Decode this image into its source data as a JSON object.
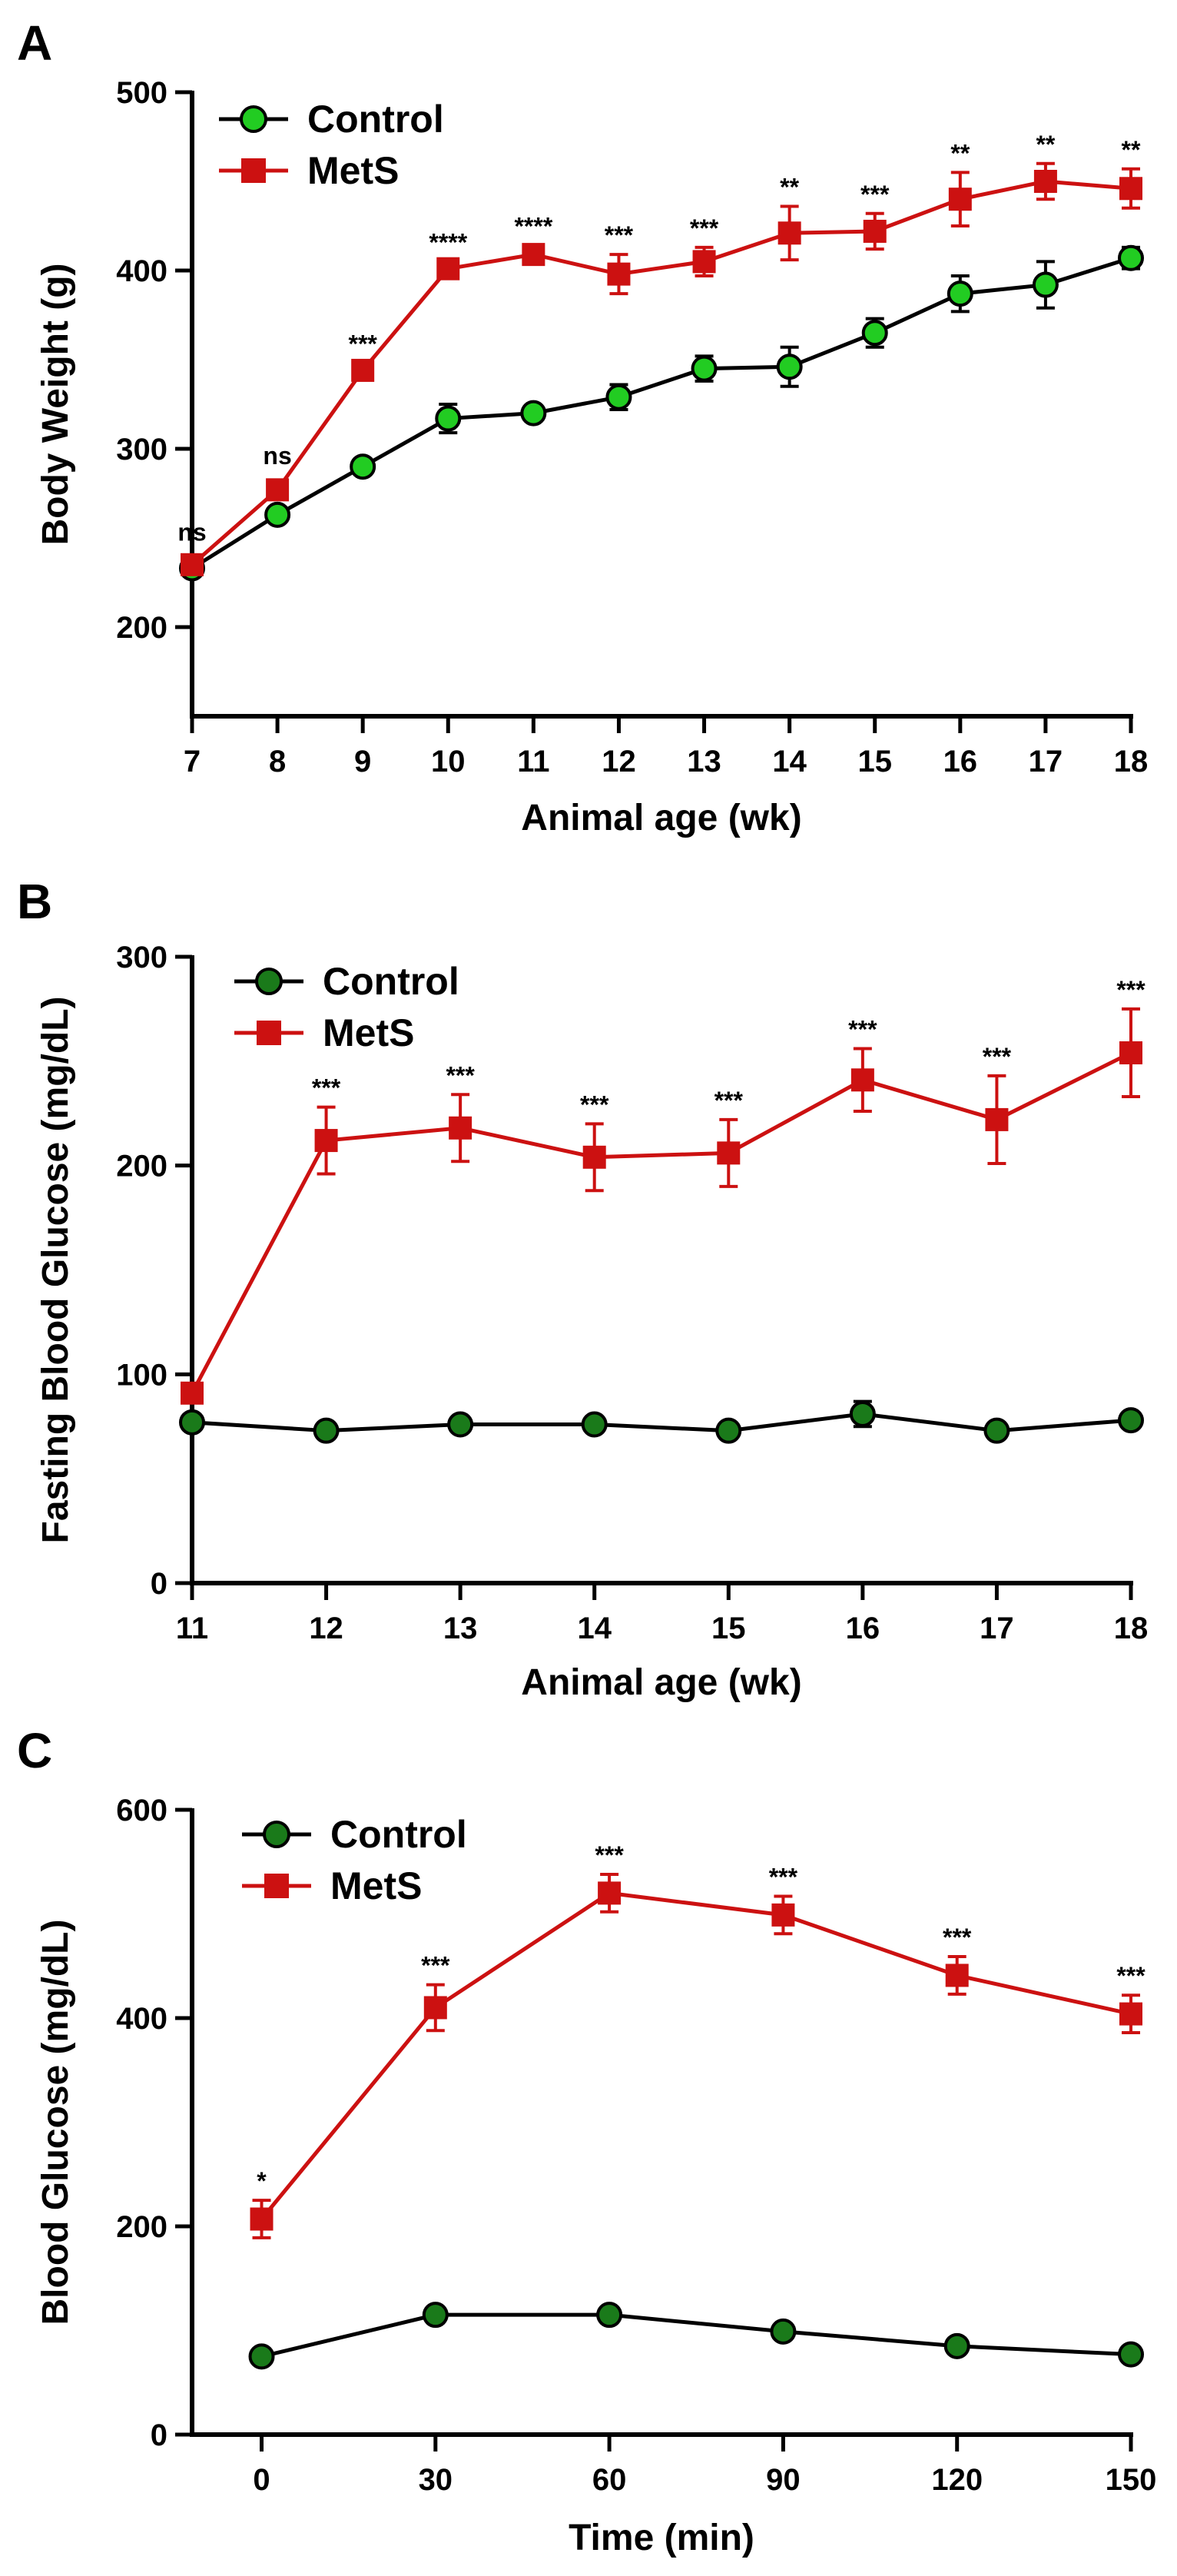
{
  "chart_data": [
    {
      "type": "line",
      "panel_label": "A",
      "xlabel": "Animal age (wk)",
      "ylabel": "Body Weight (g)",
      "xlim": [
        7,
        18
      ],
      "ylim": [
        150,
        500
      ],
      "xticks": [
        7,
        8,
        9,
        10,
        11,
        12,
        13,
        14,
        15,
        16,
        17,
        18
      ],
      "yticks": [
        200,
        300,
        400,
        500
      ],
      "x": [
        7,
        8,
        9,
        10,
        11,
        12,
        13,
        14,
        15,
        16,
        17,
        18
      ],
      "legend": "top-left",
      "series": [
        {
          "name": "Control",
          "marker": "circle",
          "color": "#22cc22",
          "line_color": "#000000",
          "values": [
            233,
            263,
            290,
            317,
            320,
            329,
            345,
            346,
            365,
            387,
            392,
            407
          ],
          "errors": [
            4,
            4,
            4,
            8,
            4,
            7,
            7,
            11,
            8,
            10,
            13,
            6
          ]
        },
        {
          "name": "MetS",
          "marker": "square",
          "color": "#cc1111",
          "line_color": "#cc1111",
          "values": [
            235,
            277,
            344,
            401,
            409,
            398,
            405,
            421,
            422,
            440,
            450,
            446
          ],
          "errors": [
            4,
            5,
            4,
            4,
            5,
            11,
            8,
            15,
            10,
            15,
            10,
            11
          ]
        }
      ],
      "annotations": [
        "ns",
        "ns",
        "***",
        "****",
        "****",
        "***",
        "***",
        "**",
        "***",
        "**",
        "**",
        "**"
      ]
    },
    {
      "type": "line",
      "panel_label": "B",
      "xlabel": "Animal age (wk)",
      "ylabel": "Fasting Blood Glucose (mg/dL)",
      "xlim": [
        11,
        18
      ],
      "ylim": [
        0,
        300
      ],
      "xticks": [
        11,
        12,
        13,
        14,
        15,
        16,
        17,
        18
      ],
      "yticks": [
        0,
        100,
        200,
        300
      ],
      "x": [
        11,
        12,
        13,
        14,
        15,
        16,
        17,
        18
      ],
      "legend": "top-left",
      "series": [
        {
          "name": "Control",
          "marker": "circle",
          "color": "#1a7a1a",
          "line_color": "#000000",
          "values": [
            77,
            73,
            76,
            76,
            73,
            81,
            73,
            78
          ],
          "errors": [
            3,
            3,
            3,
            3,
            3,
            6,
            3,
            3
          ]
        },
        {
          "name": "MetS",
          "marker": "square",
          "color": "#cc1111",
          "line_color": "#cc1111",
          "values": [
            91,
            212,
            218,
            204,
            206,
            241,
            222,
            254
          ],
          "errors": [
            4,
            16,
            16,
            16,
            16,
            15,
            21,
            21
          ]
        }
      ],
      "annotations": [
        "",
        "***",
        "***",
        "***",
        "***",
        "***",
        "***",
        "***"
      ]
    },
    {
      "type": "line",
      "panel_label": "C",
      "xlabel": "Time (min)",
      "ylabel": "Blood Glucose (mg/dL)",
      "xlim": [
        -12,
        150
      ],
      "ylim": [
        0,
        600
      ],
      "xticks": [
        0,
        30,
        60,
        90,
        120,
        150
      ],
      "yticks": [
        0,
        200,
        400,
        600
      ],
      "x": [
        0,
        30,
        60,
        90,
        120,
        150
      ],
      "legend": "top-left",
      "series": [
        {
          "name": "Control",
          "marker": "circle",
          "color": "#1a7a1a",
          "line_color": "#000000",
          "values": [
            75,
            115,
            115,
            99,
            85,
            77
          ],
          "errors": [
            4,
            5,
            5,
            4,
            4,
            4
          ]
        },
        {
          "name": "MetS",
          "marker": "square",
          "color": "#cc1111",
          "line_color": "#cc1111",
          "values": [
            207,
            410,
            520,
            499,
            441,
            404
          ],
          "errors": [
            18,
            22,
            18,
            18,
            18,
            18
          ]
        }
      ],
      "annotations": [
        "*",
        "***",
        "***",
        "***",
        "***",
        "***"
      ]
    }
  ]
}
